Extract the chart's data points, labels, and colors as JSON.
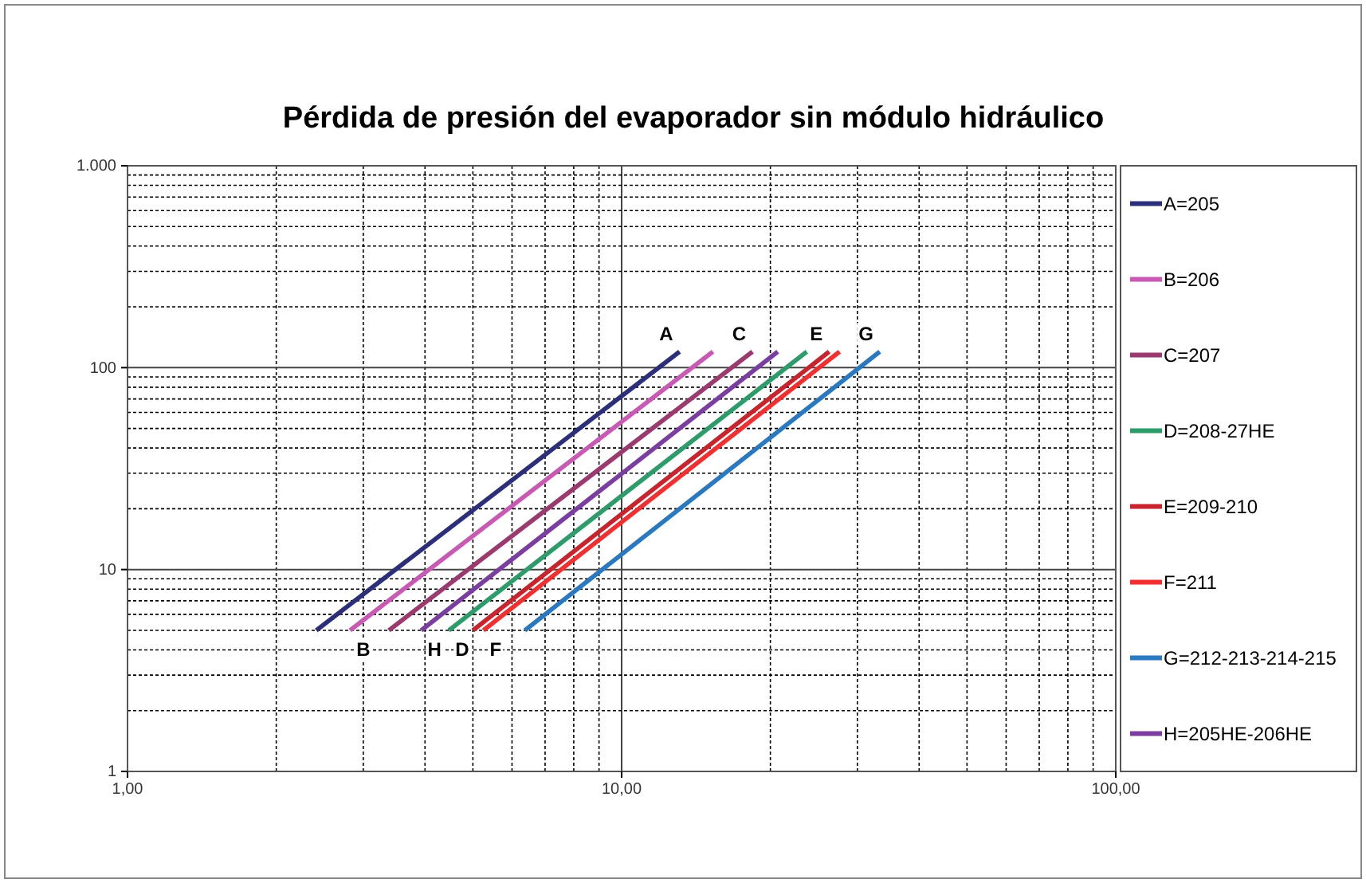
{
  "chart_data": {
    "type": "line",
    "title": "Pérdida de presión del evaporador sin módulo hidráulico",
    "log": "xy",
    "grid": true,
    "legend": "right",
    "xlim": [
      1,
      100
    ],
    "xticks": [
      {
        "value": 1,
        "label": "1,00"
      },
      {
        "value": 10,
        "label": "10,00"
      },
      {
        "value": 100,
        "label": "100,00"
      }
    ],
    "ylim": [
      1,
      1000
    ],
    "yticks": [
      1,
      10,
      100,
      {
        "value": 1000,
        "label": "1.000"
      }
    ],
    "series": [
      {
        "name": "A=205",
        "color": "#2b2f7a",
        "x": [
          2.41,
          13.1
        ],
        "values": [
          5,
          120
        ]
      },
      {
        "name": "B=206",
        "color": "#c85ab4",
        "x": [
          2.82,
          15.3
        ],
        "values": [
          5,
          120
        ]
      },
      {
        "name": "C=207",
        "color": "#9b3a6e",
        "x": [
          3.38,
          18.4
        ],
        "values": [
          5,
          120
        ]
      },
      {
        "name": "D=208-27HE",
        "color": "#2e9b6a",
        "x": [
          4.47,
          23.7
        ],
        "values": [
          5,
          120
        ]
      },
      {
        "name": "E=209-210",
        "color": "#c8242e",
        "x": [
          5.0,
          26.3
        ],
        "values": [
          5,
          120
        ]
      },
      {
        "name": "F=211",
        "color": "#f03030",
        "x": [
          5.25,
          27.6
        ],
        "values": [
          5,
          120
        ]
      },
      {
        "name": "G=212-213-214-215",
        "color": "#2a78c0",
        "x": [
          6.37,
          33.3
        ],
        "values": [
          5,
          120
        ]
      },
      {
        "name": "H=205HE-206HE",
        "color": "#7a3ea0",
        "x": [
          3.93,
          20.7
        ],
        "values": [
          5,
          120
        ]
      }
    ],
    "annotations": [
      {
        "text": "A",
        "x": 13.1,
        "y": 120
      },
      {
        "text": "C",
        "x": 18.4,
        "y": 120
      },
      {
        "text": "E",
        "x": 26.3,
        "y": 120
      },
      {
        "text": "G",
        "x": 33.3,
        "y": 120
      },
      {
        "text": "B",
        "x": 2.82,
        "y": 5
      },
      {
        "text": "H",
        "x": 3.93,
        "y": 5
      },
      {
        "text": "D",
        "x": 4.47,
        "y": 5
      },
      {
        "text": "F",
        "x": 5.25,
        "y": 5
      }
    ]
  }
}
